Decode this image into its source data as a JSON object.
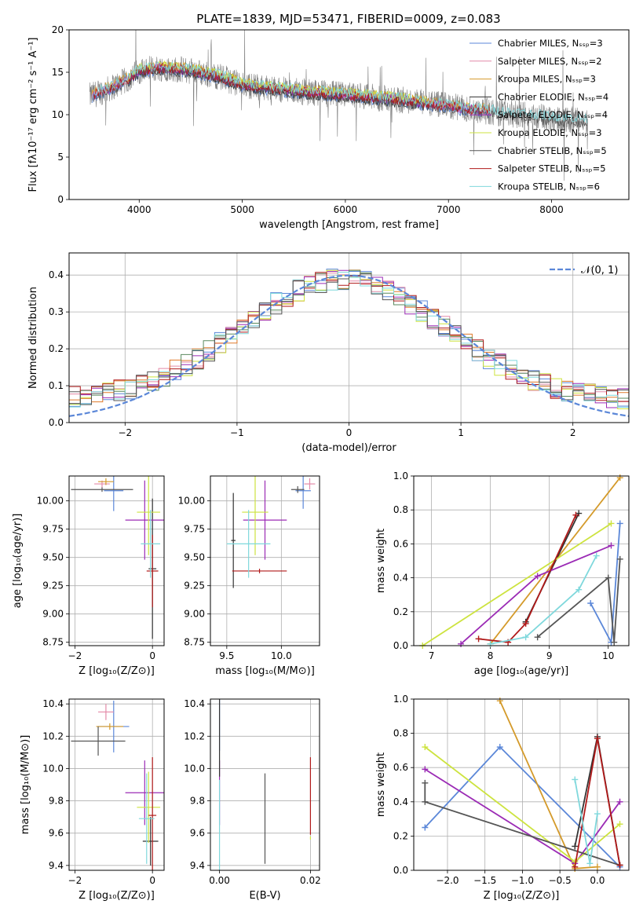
{
  "colors": {
    "Chabrier MILES": "#5b87d8",
    "Salpeter MILES": "#e48aa8",
    "Kroupa MILES": "#d49a2a",
    "Chabrier ELODIE": "#333333",
    "Salpeter ELODIE": "#9b2bb5",
    "Kroupa ELODIE": "#cde33f",
    "Chabrier STELIB": "#555555",
    "Salpeter STELIB": "#b01919",
    "Kroupa STELIB": "#7fd8dc",
    "data": "#808080",
    "hist_orange": "#e07a2a",
    "hist_green": "#5a8a5f",
    "gauss": "#5b87d8"
  },
  "chart_data": [
    {
      "id": "spectrum",
      "type": "line",
      "title": "PLATE=1839, MJD=53471, FIBERID=0009, z=0.083",
      "xlabel": "wavelength [Angstrom, rest frame]",
      "ylabel": "Flux [fλ10⁻¹⁷ erg cm⁻² s⁻¹ A⁻¹]",
      "xlim": [
        3320,
        8750
      ],
      "ylim": [
        0,
        20
      ],
      "xticks": [
        4000,
        5000,
        6000,
        7000,
        8000
      ],
      "yticks": [
        0,
        5,
        10,
        15,
        20
      ],
      "legend_position": "top-right",
      "legend": [
        "Chabrier MILES, Nₛₛₚ=3",
        "Salpeter MILES, Nₛₛₚ=2",
        "Kroupa MILES, Nₛₛₚ=3",
        "Chabrier ELODIE, Nₛₛₚ=4",
        "Salpeter ELODIE, Nₛₛₚ=4",
        "Kroupa ELODIE, Nₛₛₚ=3",
        "Chabrier STELIB, Nₛₛₚ=5",
        "Salpeter STELIB, Nₛₛₚ=5",
        "Kroupa STELIB, Nₛₛₚ=6"
      ],
      "series_keys": [
        "Chabrier MILES",
        "Salpeter MILES",
        "Kroupa MILES",
        "Chabrier ELODIE",
        "Salpeter ELODIE",
        "Kroupa ELODIE",
        "Chabrier STELIB",
        "Salpeter STELIB",
        "Kroupa STELIB"
      ],
      "continuum": {
        "x": [
          3520,
          3700,
          3900,
          4000,
          4200,
          4500,
          4800,
          5000,
          5500,
          6000,
          6500,
          7000,
          7500,
          8000,
          8350
        ],
        "y": [
          12.2,
          13.0,
          14.2,
          15.2,
          15.5,
          15.2,
          14.4,
          13.5,
          12.8,
          12.3,
          11.8,
          11.0,
          10.2,
          9.6,
          9.2
        ]
      }
    },
    {
      "id": "residuals",
      "type": "histogram",
      "xlabel": "(data-model)/error",
      "ylabel": "Normed distribution",
      "xlim": [
        -2.5,
        2.5
      ],
      "ylim": [
        0,
        0.46
      ],
      "xticks": [
        -2,
        -1,
        0,
        1,
        2
      ],
      "yticks": [
        0.0,
        0.1,
        0.2,
        0.3,
        0.4
      ],
      "grid": true,
      "legend_position": "top-right",
      "legend": [
        "𝒩(0, 1)"
      ],
      "bin_width": 0.1
    },
    {
      "id": "age-vs-Z",
      "type": "scatter",
      "xlabel": "Z [log₁₀(Z/Z⊙)]",
      "ylabel": "age  [log₁₀(age/yr)]",
      "xlim": [
        -2.15,
        0.3
      ],
      "ylim": [
        8.72,
        10.22
      ],
      "xticks": [
        -2,
        0
      ],
      "yticks": [
        8.75,
        9.0,
        9.25,
        9.5,
        9.75,
        10.0
      ],
      "grid": true,
      "points": [
        {
          "key": "Chabrier MILES",
          "x": -1.0,
          "y": 10.09,
          "xerr": 0.25,
          "yerr": 0.18
        },
        {
          "key": "Salpeter MILES",
          "x": -1.3,
          "y": 10.15,
          "xerr": 0.2,
          "yerr": 0.03
        },
        {
          "key": "Kroupa MILES",
          "x": -1.2,
          "y": 10.17,
          "xerr": 0.2,
          "yerr": 0.03
        },
        {
          "key": "Chabrier ELODIE",
          "x": 0.0,
          "y": 9.4,
          "xerr": 0.1,
          "yerr": 0.62
        },
        {
          "key": "Salpeter ELODIE",
          "x": -0.2,
          "y": 9.83,
          "xerr": 0.5,
          "yerr": 0.35
        },
        {
          "key": "Kroupa ELODIE",
          "x": -0.1,
          "y": 9.9,
          "xerr": 0.3,
          "yerr": 0.38
        },
        {
          "key": "Chabrier STELIB",
          "x": -1.3,
          "y": 10.1,
          "xerr": 0.8,
          "yerr": 0.02
        },
        {
          "key": "Salpeter STELIB",
          "x": 0.0,
          "y": 9.38,
          "xerr": 0.15,
          "yerr": 0.32
        },
        {
          "key": "Kroupa STELIB",
          "x": -0.05,
          "y": 9.62,
          "xerr": 0.25,
          "yerr": 0.3
        }
      ]
    },
    {
      "id": "age-vs-mass",
      "type": "scatter",
      "xlabel": "mass [log₁₀(M/M⊙)]",
      "xlim": [
        9.35,
        10.35
      ],
      "ylim": [
        8.72,
        10.22
      ],
      "xticks": [
        9.5,
        10.0
      ],
      "yticks": [
        8.75,
        9.0,
        9.25,
        9.5,
        9.75,
        10.0
      ],
      "grid": true,
      "points": [
        {
          "key": "Chabrier MILES",
          "x": 10.2,
          "y": 10.09,
          "xerr": 0.07,
          "yerr": 0.16
        },
        {
          "key": "Salpeter MILES",
          "x": 10.26,
          "y": 10.15,
          "xerr": 0.05,
          "yerr": 0.05
        },
        {
          "key": "Chabrier ELODIE",
          "x": 9.56,
          "y": 9.65,
          "xerr": 0.02,
          "yerr": 0.42
        },
        {
          "key": "Salpeter ELODIE",
          "x": 9.85,
          "y": 9.83,
          "xerr": 0.2,
          "yerr": 0.35
        },
        {
          "key": "Kroupa ELODIE",
          "x": 9.76,
          "y": 9.9,
          "xerr": 0.12,
          "yerr": 0.38
        },
        {
          "key": "Chabrier STELIB",
          "x": 10.15,
          "y": 10.1,
          "xerr": 0.06,
          "yerr": 0.03
        },
        {
          "key": "Salpeter STELIB",
          "x": 9.8,
          "y": 9.38,
          "xerr": 0.25,
          "yerr": 0.02
        },
        {
          "key": "Kroupa STELIB",
          "x": 9.7,
          "y": 9.62,
          "xerr": 0.2,
          "yerr": 0.3
        }
      ]
    },
    {
      "id": "weight-vs-age",
      "type": "line",
      "xlabel": "age  [log₁₀(age/yr)]",
      "ylabel": "mass weight",
      "xlim": [
        6.7,
        10.35
      ],
      "ylim": [
        0,
        1.0
      ],
      "xticks": [
        7,
        8,
        9,
        10
      ],
      "yticks": [
        0.0,
        0.2,
        0.4,
        0.6,
        0.8,
        1.0
      ],
      "grid": true,
      "series": [
        {
          "key": "Chabrier MILES",
          "points": [
            [
              9.7,
              0.25
            ],
            [
              10.05,
              0.02
            ],
            [
              10.2,
              0.72
            ]
          ]
        },
        {
          "key": "Kroupa MILES",
          "points": [
            [
              8.0,
              0.01
            ],
            [
              10.2,
              0.99
            ]
          ]
        },
        {
          "key": "Chabrier ELODIE",
          "points": [
            [
              8.6,
              0.14
            ],
            [
              9.5,
              0.78
            ]
          ]
        },
        {
          "key": "Salpeter ELODIE",
          "points": [
            [
              7.5,
              0.01
            ],
            [
              8.8,
              0.41
            ],
            [
              10.05,
              0.59
            ]
          ]
        },
        {
          "key": "Kroupa ELODIE",
          "points": [
            [
              6.85,
              0.0
            ],
            [
              10.05,
              0.72
            ]
          ]
        },
        {
          "key": "Chabrier STELIB",
          "points": [
            [
              8.8,
              0.05
            ],
            [
              10.0,
              0.4
            ],
            [
              10.1,
              0.02
            ],
            [
              10.2,
              0.51
            ]
          ]
        },
        {
          "key": "Salpeter STELIB",
          "points": [
            [
              7.8,
              0.04
            ],
            [
              8.3,
              0.02
            ],
            [
              8.6,
              0.13
            ],
            [
              9.45,
              0.77
            ]
          ]
        },
        {
          "key": "Kroupa STELIB",
          "points": [
            [
              8.0,
              0.01
            ],
            [
              8.6,
              0.05
            ],
            [
              9.5,
              0.33
            ],
            [
              9.8,
              0.53
            ]
          ]
        }
      ]
    },
    {
      "id": "mass-vs-Z",
      "type": "scatter",
      "xlabel": "Z [log₁₀(Z/Z⊙)]",
      "ylabel": "mass [log₁₀(M/M⊙)]",
      "xlim": [
        -2.15,
        0.3
      ],
      "ylim": [
        9.37,
        10.43
      ],
      "xticks": [
        -2,
        0
      ],
      "yticks": [
        9.4,
        9.6,
        9.8,
        10.0,
        10.2,
        10.4
      ],
      "grid": true,
      "points": [
        {
          "key": "Chabrier MILES",
          "x": -1.0,
          "y": 10.26,
          "xerr": 0.4,
          "yerr": 0.16
        },
        {
          "key": "Salpeter MILES",
          "x": -1.2,
          "y": 10.35,
          "xerr": 0.2,
          "yerr": 0.05
        },
        {
          "key": "Kroupa MILES",
          "x": -1.1,
          "y": 10.26,
          "xerr": 0.35,
          "yerr": 0.02
        },
        {
          "key": "Chabrier ELODIE",
          "x": -0.05,
          "y": 9.55,
          "xerr": 0.2,
          "yerr": 0.15
        },
        {
          "key": "Salpeter ELODIE",
          "x": -0.2,
          "y": 9.85,
          "xerr": 0.5,
          "yerr": 0.2
        },
        {
          "key": "Kroupa ELODIE",
          "x": -0.1,
          "y": 9.76,
          "xerr": 0.3,
          "yerr": 0.22
        },
        {
          "key": "Chabrier STELIB",
          "x": -1.4,
          "y": 10.17,
          "xerr": 0.7,
          "yerr": 0.09
        },
        {
          "key": "Salpeter STELIB",
          "x": 0.0,
          "y": 9.71,
          "xerr": 0.1,
          "yerr": 0.36
        },
        {
          "key": "Kroupa STELIB",
          "x": -0.15,
          "y": 9.69,
          "xerr": 0.2,
          "yerr": 0.28
        }
      ]
    },
    {
      "id": "mass-vs-EBV",
      "type": "scatter",
      "xlabel": "E(B-V)",
      "xlim": [
        -0.002,
        0.022
      ],
      "ylim": [
        9.37,
        10.43
      ],
      "xticks": [
        0.0,
        0.02
      ],
      "xtick_labels": [
        "0.00",
        "0.02"
      ],
      "yticks": [
        9.4,
        9.6,
        9.8,
        10.0,
        10.2,
        10.4
      ],
      "grid": true,
      "points": [
        {
          "key": "Chabrier MILES",
          "x": 0.0,
          "y": 10.27,
          "xerr": 0,
          "yerr": 0.16
        },
        {
          "key": "Salpeter ELODIE",
          "x": 0.0,
          "y": 9.85,
          "xerr": 0,
          "yerr": 0.2
        },
        {
          "key": "Kroupa STELIB",
          "x": 0.0,
          "y": 9.65,
          "xerr": 0,
          "yerr": 0.28
        },
        {
          "key": "Chabrier ELODIE",
          "x": 0.0,
          "y": 10.2,
          "xerr": 0,
          "yerr": 0.25
        },
        {
          "key": "Chabrier STELIB",
          "x": 0.01,
          "y": 9.69,
          "xerr": 0,
          "yerr": 0.28
        },
        {
          "key": "Salpeter STELIB",
          "x": 0.02,
          "y": 9.83,
          "xerr": 0,
          "yerr": 0.24
        },
        {
          "key": "Kroupa ELODIE",
          "x": 0.02,
          "y": 9.57,
          "xerr": 0,
          "yerr": 0.01
        }
      ]
    },
    {
      "id": "weight-vs-Z",
      "type": "line",
      "xlabel": "Z [log₁₀(Z/Z⊙)]",
      "ylabel": "mass weight",
      "xlim": [
        -2.45,
        0.42
      ],
      "ylim": [
        0,
        1.0
      ],
      "xticks": [
        -2.0,
        -1.5,
        -1.0,
        -0.5,
        0.0
      ],
      "yticks": [
        0.0,
        0.2,
        0.4,
        0.6,
        0.8,
        1.0
      ],
      "grid": true,
      "series": [
        {
          "key": "Chabrier MILES",
          "points": [
            [
              -2.3,
              0.25
            ],
            [
              -1.3,
              0.72
            ],
            [
              0.3,
              0.02
            ]
          ]
        },
        {
          "key": "Kroupa MILES",
          "points": [
            [
              -1.3,
              0.99
            ],
            [
              -0.3,
              0.01
            ],
            [
              0.0,
              0.02
            ]
          ]
        },
        {
          "key": "Chabrier ELODIE",
          "points": [
            [
              -0.3,
              0.14
            ],
            [
              0.0,
              0.78
            ],
            [
              0.3,
              0.03
            ]
          ]
        },
        {
          "key": "Salpeter ELODIE",
          "points": [
            [
              -2.3,
              0.59
            ],
            [
              -0.3,
              0.04
            ],
            [
              0.3,
              0.4
            ]
          ]
        },
        {
          "key": "Kroupa ELODIE",
          "points": [
            [
              -2.3,
              0.72
            ],
            [
              -0.3,
              0.05
            ],
            [
              0.3,
              0.27
            ]
          ]
        },
        {
          "key": "Chabrier STELIB",
          "points": [
            [
              -2.3,
              0.51
            ],
            [
              -2.3,
              0.4
            ],
            [
              0.3,
              0.03
            ]
          ]
        },
        {
          "key": "Salpeter STELIB",
          "points": [
            [
              -0.3,
              0.02
            ],
            [
              0.0,
              0.77
            ],
            [
              0.3,
              0.03
            ]
          ]
        },
        {
          "key": "Kroupa STELIB",
          "points": [
            [
              -0.3,
              0.53
            ],
            [
              -0.1,
              0.04
            ],
            [
              0.0,
              0.33
            ]
          ]
        }
      ]
    }
  ]
}
